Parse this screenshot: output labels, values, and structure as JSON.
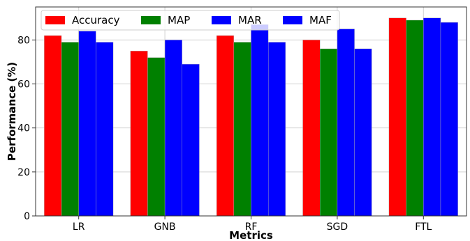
{
  "chart_data": {
    "type": "bar",
    "categories": [
      "LR",
      "GNB",
      "RF",
      "SGD",
      "FTL"
    ],
    "series": [
      {
        "name": "Accuracy",
        "color": "#ff0000",
        "values": [
          82,
          75,
          82,
          80,
          90
        ]
      },
      {
        "name": "MAP",
        "color": "#008000",
        "values": [
          79,
          72,
          79,
          76,
          89
        ]
      },
      {
        "name": "MAR",
        "color": "#0000ff",
        "values": [
          84,
          80,
          87,
          85,
          90
        ]
      },
      {
        "name": "MAF",
        "color": "#0000ff",
        "values": [
          79,
          69,
          79,
          76,
          88
        ]
      }
    ],
    "title": "",
    "xlabel": "Metrics",
    "ylabel": "Performance (%)",
    "ylim": [
      0,
      95
    ],
    "yticks": [
      0,
      20,
      40,
      60,
      80
    ],
    "grid": true,
    "legend": "top, horizontal"
  }
}
